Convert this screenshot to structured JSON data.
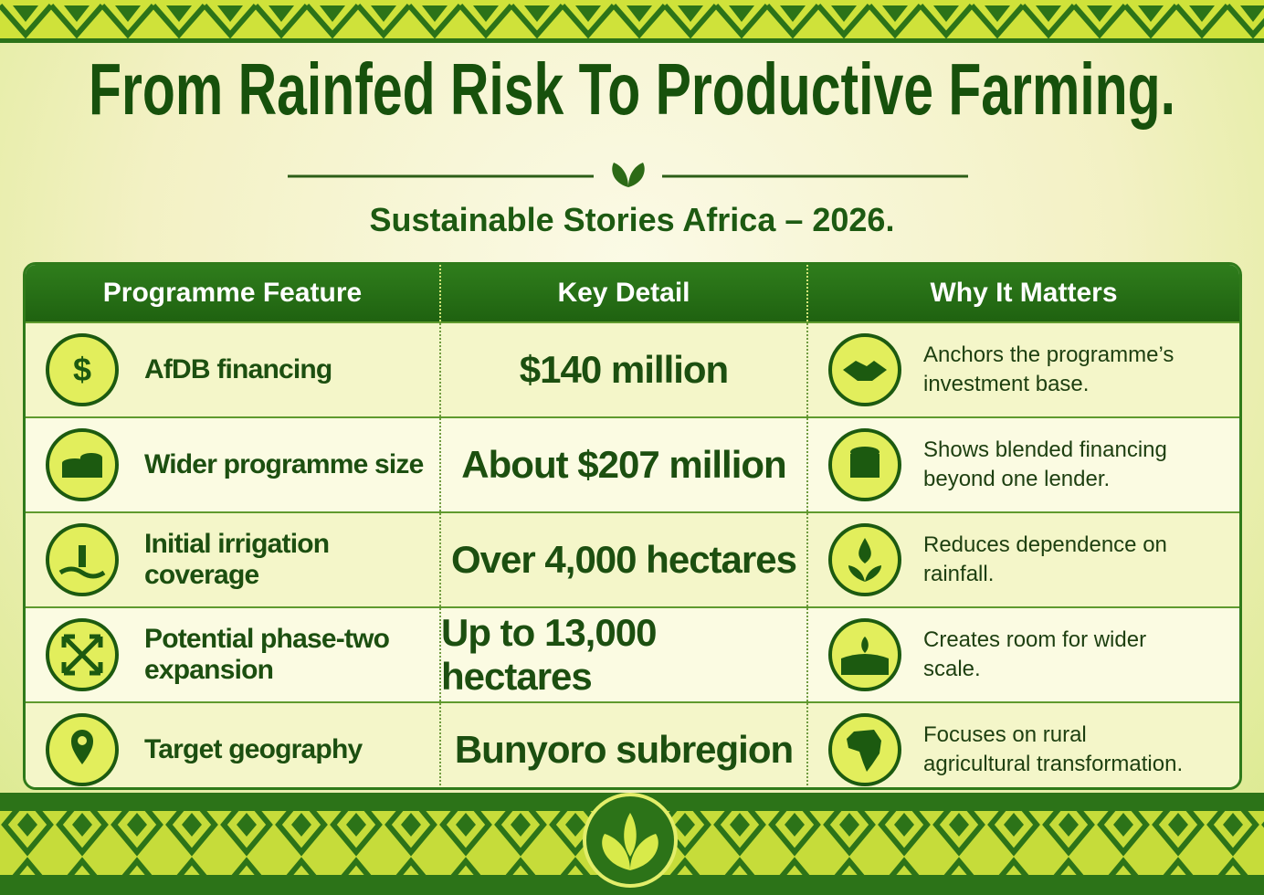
{
  "header": {
    "title": "From Rainfed Risk To Productive Farming.",
    "subtitle": "Sustainable Stories Africa – 2026."
  },
  "table": {
    "columns": [
      "Programme Feature",
      "Key Detail",
      "Why It Matters"
    ],
    "rows": [
      [
        "AfDB financing",
        "$140 million",
        "Anchors the programme’s investment base."
      ],
      [
        "Wider programme size",
        "About $207 million",
        "Shows blended financing beyond one lender."
      ],
      [
        "Initial irrigation coverage",
        "Over 4,000 hectares",
        "Reduces dependence on rainfall."
      ],
      [
        "Potential phase-two expansion",
        "Up to 13,000 hectares",
        "Creates room for wider scale."
      ],
      [
        "Target geography",
        "Bunyoro subregion",
        "Focuses on rural agricultural transformation."
      ]
    ]
  }
}
